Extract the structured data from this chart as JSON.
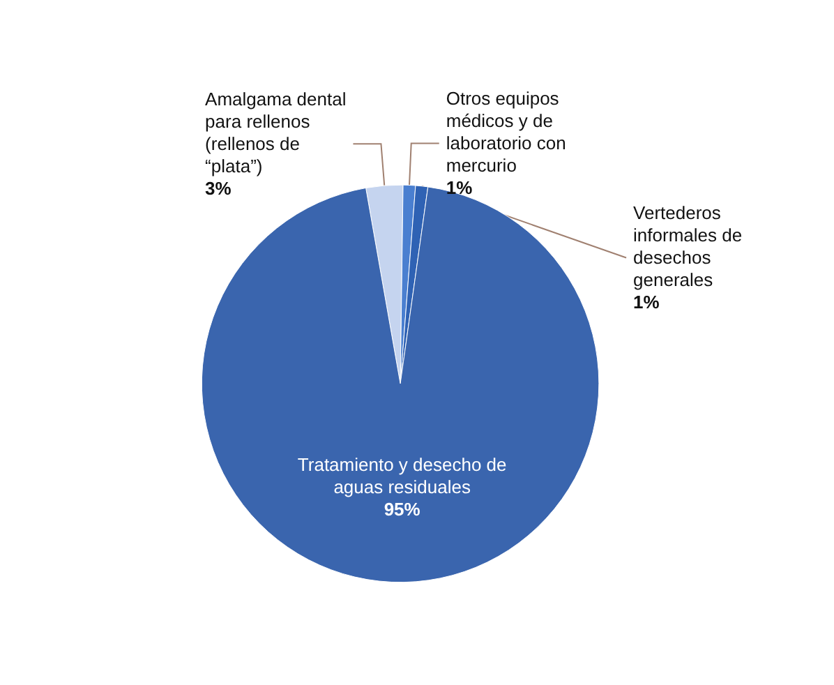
{
  "chart_data": {
    "type": "pie",
    "categories": [
      "Amalgama dental para rellenos (rellenos de “plata”)",
      "Otros equipos médicos y de laboratorio con mercurio",
      "Vertederos informales de desechos generales",
      "Tratamiento y desecho de aguas residuales"
    ],
    "values": [
      3,
      1,
      1,
      95
    ],
    "value_labels": [
      "3%",
      "1%",
      "1%",
      "95%"
    ],
    "colors": [
      "#c5d4ef",
      "#4a7fd0",
      "#2f62b4",
      "#3a65ae"
    ]
  }
}
